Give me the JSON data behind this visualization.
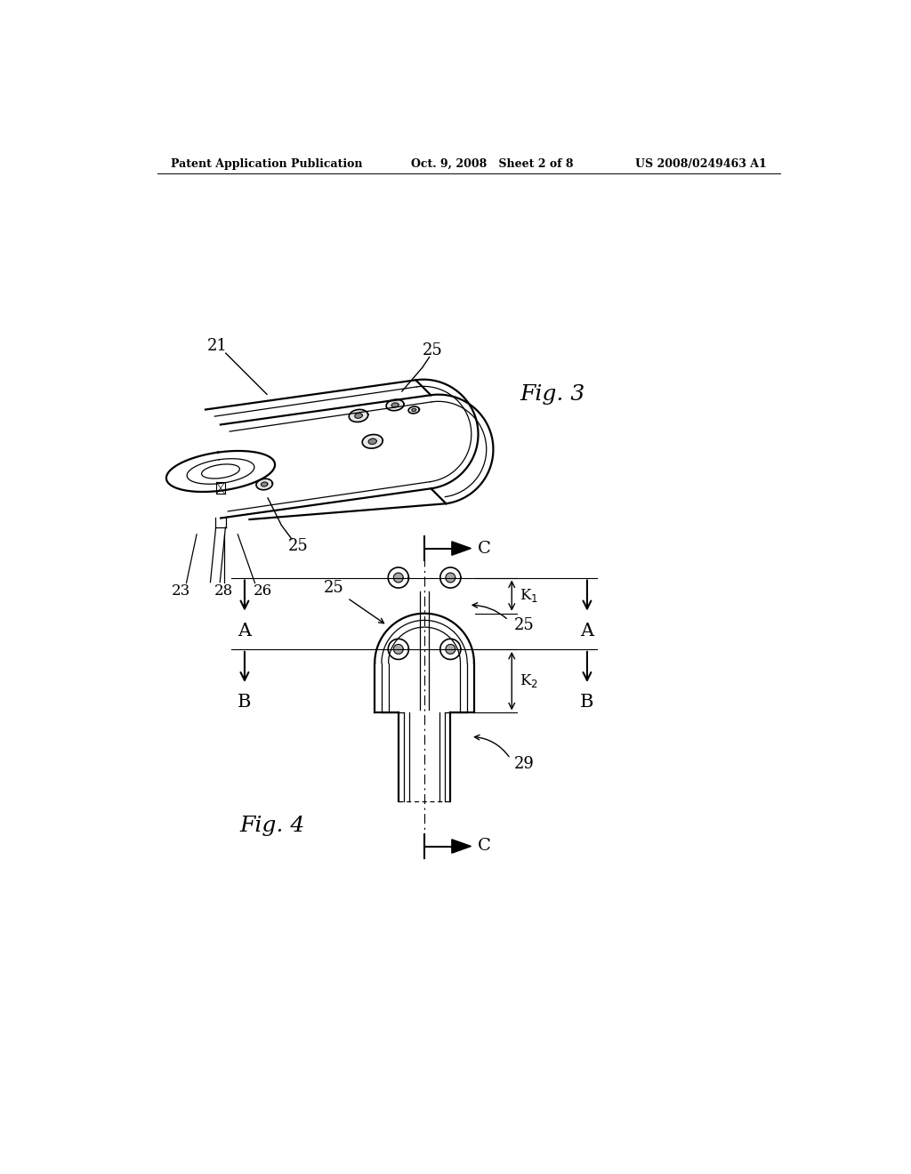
{
  "background_color": "#ffffff",
  "header_left": "Patent Application Publication",
  "header_center": "Oct. 9, 2008   Sheet 2 of 8",
  "header_right": "US 2008/0249463 A1",
  "fig3_label": "Fig. 3",
  "fig4_label": "Fig. 4",
  "line_color": "#000000"
}
